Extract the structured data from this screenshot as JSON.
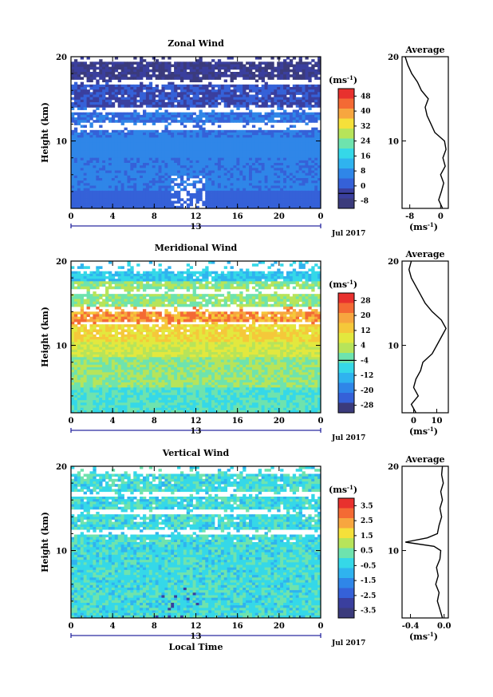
{
  "chart_data": [
    {
      "type": "heatmap",
      "title": "Zonal Wind",
      "ylabel": "Height (km)",
      "yticks": [
        "20",
        "10"
      ],
      "ylim": [
        2,
        20
      ],
      "xticks": [
        "0",
        "4",
        "8",
        "12",
        "16",
        "20",
        "0"
      ],
      "xlim": [
        0,
        24
      ],
      "date_tick": "13",
      "date_label": "Jul 2017",
      "colorbar": {
        "unit_label": "(ms",
        "unit_exp": "-1",
        "labels": [
          "48",
          "40",
          "32",
          "24",
          "16",
          "8",
          "0",
          "-8"
        ],
        "zero_index": 6,
        "colors": [
          "#e8312e",
          "#f46a34",
          "#f7a63f",
          "#f5e03a",
          "#b7e45a",
          "#6ee3ae",
          "#35d8e8",
          "#2fb3ef",
          "#2f86e8",
          "#3561d8",
          "#3a3f9e",
          "#3b3b7c"
        ]
      },
      "average": {
        "title": "Average",
        "xticks": [
          "-8",
          "0"
        ],
        "xlim": [
          -10,
          2
        ],
        "yticks": [
          "20",
          "10"
        ],
        "unit_label": "(ms",
        "unit_exp": "-1",
        "height": [
          2,
          3,
          4,
          5,
          6,
          7,
          8,
          9,
          10,
          11,
          12,
          13,
          14,
          15,
          16,
          17,
          18,
          19,
          20
        ],
        "value": [
          0.5,
          -0.5,
          0.2,
          0.8,
          0.0,
          1.2,
          0.6,
          1.4,
          1.0,
          -1.5,
          -2.5,
          -3.5,
          -4.0,
          -3.2,
          -5.0,
          -6.0,
          -7.5,
          -8.5,
          -9.2
        ]
      }
    },
    {
      "type": "heatmap",
      "title": "Meridional Wind",
      "ylabel": "Height (km)",
      "yticks": [
        "20",
        "10"
      ],
      "ylim": [
        2,
        20
      ],
      "xticks": [
        "0",
        "4",
        "8",
        "12",
        "16",
        "20",
        "0"
      ],
      "xlim": [
        0,
        24
      ],
      "date_tick": "13",
      "date_label": "Jul 2017",
      "colorbar": {
        "unit_label": "(ms",
        "unit_exp": "-1",
        "labels": [
          "28",
          "20",
          "12",
          "4",
          "-4",
          "-12",
          "-20",
          "-28"
        ],
        "zero_index": 3.5,
        "colors": [
          "#e8312e",
          "#f46a34",
          "#f7a63f",
          "#f5c83a",
          "#e3e83e",
          "#b7e45a",
          "#6ee3ae",
          "#35d8e8",
          "#2fb3ef",
          "#2f86e8",
          "#3561d8",
          "#3b3b7c"
        ]
      },
      "average": {
        "title": "Average",
        "xticks": [
          "0",
          "10"
        ],
        "xlim": [
          -5,
          15
        ],
        "yticks": [
          "20",
          "10"
        ],
        "unit_label": "(ms",
        "unit_exp": "-1",
        "height": [
          2,
          3,
          4,
          5,
          6,
          7,
          8,
          9,
          10,
          11,
          12,
          13,
          14,
          15,
          16,
          17,
          18,
          19,
          20
        ],
        "value": [
          1,
          -1,
          2,
          0,
          1,
          3,
          4,
          8,
          10,
          12,
          14,
          12,
          8,
          5,
          3,
          1,
          -1,
          -2,
          -1
        ]
      }
    },
    {
      "type": "heatmap",
      "title": "Vertical Wind",
      "ylabel": "Height (km)",
      "yticks": [
        "20",
        "10"
      ],
      "ylim": [
        2,
        20
      ],
      "xticks": [
        "0",
        "4",
        "8",
        "12",
        "16",
        "20",
        "0"
      ],
      "xlim": [
        0,
        24
      ],
      "date_tick": "13",
      "date_label": "Jul 2017",
      "xlabel": "Local Time",
      "colorbar": {
        "unit_label": "(ms",
        "unit_exp": "-1",
        "labels": [
          "3.5",
          "2.5",
          "1.5",
          "0.5",
          "-0.5",
          "-1.5",
          "-2.5",
          "-3.5"
        ],
        "zero_index": null,
        "colors": [
          "#e8312e",
          "#f46a34",
          "#f7a63f",
          "#f5e03a",
          "#b7e45a",
          "#6ee3ae",
          "#35d8e8",
          "#2fb3ef",
          "#2f86e8",
          "#3561d8",
          "#3a3f9e",
          "#3b3b7c"
        ]
      },
      "average": {
        "title": "Average",
        "xticks": [
          "-0.4",
          "0.0"
        ],
        "xlim": [
          -0.5,
          0.05
        ],
        "yticks": [
          "20",
          "10"
        ],
        "unit_label": "(ms",
        "unit_exp": "-1",
        "height": [
          2,
          3,
          4,
          5,
          6,
          7,
          8,
          9,
          10,
          10.5,
          11,
          11.5,
          12,
          13,
          14,
          15,
          16,
          17,
          18,
          19,
          20
        ],
        "value": [
          -0.02,
          -0.05,
          -0.08,
          -0.06,
          -0.1,
          -0.07,
          -0.09,
          -0.05,
          -0.04,
          -0.12,
          -0.46,
          -0.2,
          -0.08,
          -0.06,
          -0.03,
          -0.05,
          -0.02,
          -0.04,
          -0.01,
          -0.03,
          -0.02
        ]
      }
    }
  ]
}
